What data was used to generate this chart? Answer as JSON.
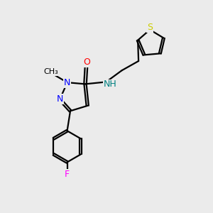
{
  "background_color": "#ebebeb",
  "bond_color": "#000000",
  "atom_colors": {
    "N": "#0000ff",
    "O": "#ff0000",
    "F": "#ff00ff",
    "S": "#cccc00",
    "NH": "#008080",
    "C": "#000000"
  },
  "figsize": [
    3.0,
    3.0
  ],
  "dpi": 100
}
